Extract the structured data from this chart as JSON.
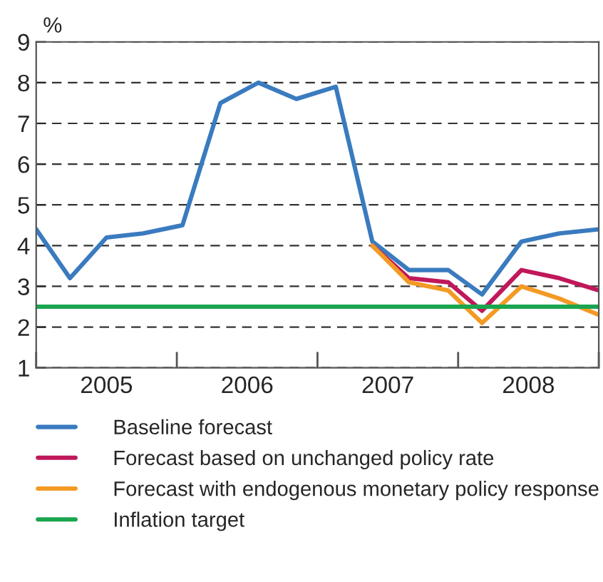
{
  "chart_data": {
    "type": "line",
    "ylabel": "%",
    "x": [
      2005.0,
      2005.24,
      2005.5,
      2005.76,
      2006.04,
      2006.31,
      2006.58,
      2006.85,
      2007.13,
      2007.39,
      2007.65,
      2007.93,
      2008.17,
      2008.45,
      2008.72,
      2009.0
    ],
    "series": [
      {
        "name": "Baseline forecast",
        "color": "#3a7bbf",
        "values": [
          4.4,
          3.2,
          4.2,
          4.3,
          4.5,
          7.5,
          8.0,
          7.6,
          7.9,
          4.1,
          3.4,
          3.4,
          2.8,
          4.1,
          4.3,
          4.4
        ]
      },
      {
        "name": "Forecast based on unchanged policy rate",
        "color": "#c0185a",
        "values": [
          null,
          null,
          null,
          null,
          null,
          null,
          null,
          null,
          null,
          4.0,
          3.2,
          3.1,
          2.4,
          3.4,
          3.2,
          2.9
        ]
      },
      {
        "name": "Forecast with endogenous monetary policy response",
        "color": "#f39a25",
        "values": [
          null,
          null,
          null,
          null,
          null,
          null,
          null,
          null,
          null,
          4.0,
          3.1,
          2.9,
          2.1,
          3.0,
          2.7,
          2.3
        ]
      },
      {
        "name": "Inflation target",
        "color": "#1aa54f",
        "values": [
          2.5,
          2.5,
          2.5,
          2.5,
          2.5,
          2.5,
          2.5,
          2.5,
          2.5,
          2.5,
          2.5,
          2.5,
          2.5,
          2.5,
          2.5,
          2.5
        ]
      }
    ],
    "xlim": [
      2005,
      2009
    ],
    "xticks": [
      {
        "value": 2005,
        "label": null
      },
      {
        "value": 2005.5,
        "label": "2005"
      },
      {
        "value": 2006,
        "label": null
      },
      {
        "value": 2006.5,
        "label": "2006"
      },
      {
        "value": 2007,
        "label": null
      },
      {
        "value": 2007.5,
        "label": "2007"
      },
      {
        "value": 2008,
        "label": null
      },
      {
        "value": 2008.5,
        "label": "2008"
      },
      {
        "value": 2009,
        "label": null
      }
    ],
    "ylim": [
      1,
      9
    ],
    "yticks": [
      1,
      2,
      3,
      4,
      5,
      6,
      7,
      8,
      9
    ],
    "grid": "y",
    "legend": "bottom",
    "line_style": "solid",
    "marker": "none"
  }
}
